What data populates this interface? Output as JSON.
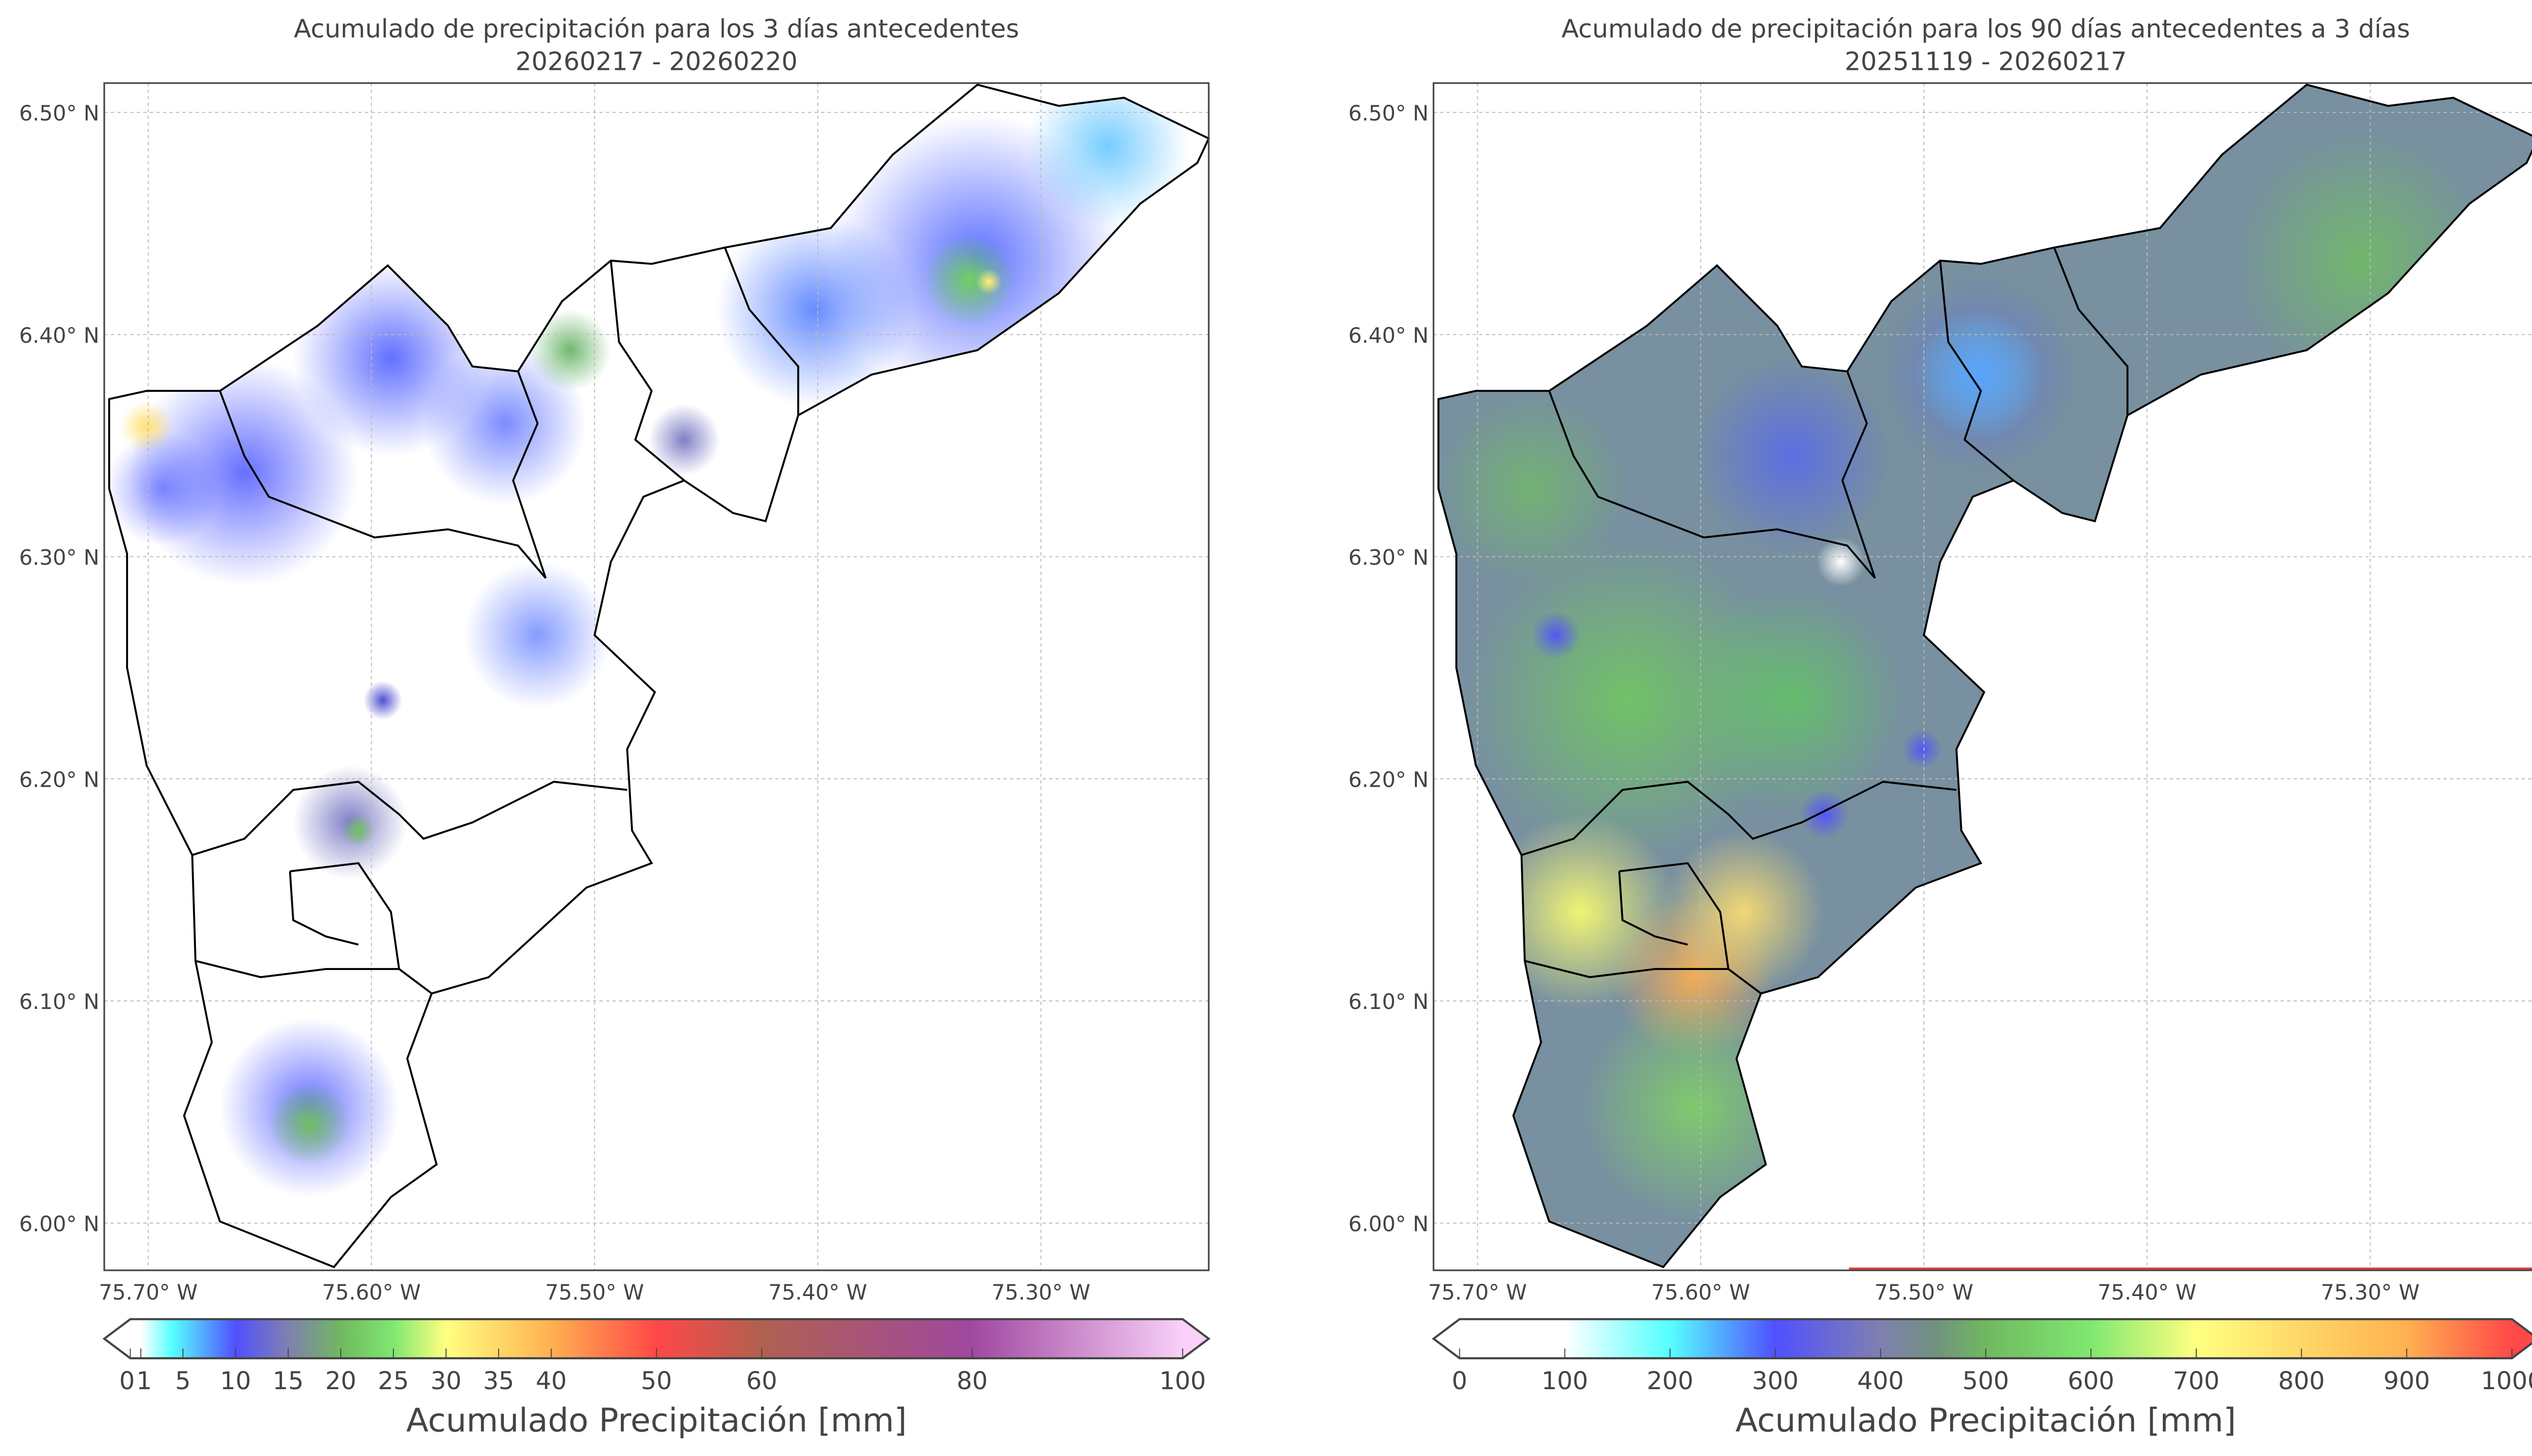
{
  "chart_data": [
    {
      "type": "heatmap",
      "title": "Acumulado de precipitación para los 3 días antecedentes",
      "subtitle": "20260217 - 20260220",
      "x_ticks": [
        "75.70° W",
        "75.60° W",
        "75.50° W",
        "75.40° W",
        "75.30° W"
      ],
      "x_tick_values": [
        -75.7,
        -75.6,
        -75.5,
        -75.4,
        -75.3
      ],
      "y_ticks": [
        "6.50° N",
        "6.40° N",
        "6.30° N",
        "6.20° N",
        "6.10° N",
        "6.00° N"
      ],
      "y_tick_values": [
        6.5,
        6.4,
        6.3,
        6.2,
        6.1,
        6.0
      ],
      "grid": true,
      "colorbar": {
        "label": "Acumulado Precipitación [mm]",
        "range": [
          0,
          100
        ],
        "ticks": [
          "0",
          "1",
          "5",
          "10",
          "15",
          "20",
          "25",
          "30",
          "35",
          "40",
          "50",
          "60",
          "80",
          "100"
        ],
        "tick_values": [
          0,
          1,
          5,
          10,
          15,
          20,
          25,
          30,
          35,
          40,
          50,
          60,
          80,
          100
        ],
        "extend": "both",
        "colors": [
          [
            "0",
            "#ffffff"
          ],
          [
            "1",
            "#ffffff"
          ],
          [
            "4",
            "#55ffff"
          ],
          [
            "10",
            "#5050ff"
          ],
          [
            "15",
            "#8080b0"
          ],
          [
            "20",
            "#70b860"
          ],
          [
            "25",
            "#80e870"
          ],
          [
            "30",
            "#ffff80"
          ],
          [
            "40",
            "#ffb050"
          ],
          [
            "50",
            "#ff4848"
          ],
          [
            "60",
            "#b06050"
          ],
          [
            "80",
            "#a048a0"
          ],
          [
            "100",
            "#f8d0f8"
          ]
        ]
      }
    },
    {
      "type": "heatmap",
      "title": "Acumulado de precipitación para los 90 días antecedentes a 3 días",
      "subtitle": "20251119 - 20260217",
      "x_ticks": [
        "75.70° W",
        "75.60° W",
        "75.50° W",
        "75.40° W",
        "75.30° W"
      ],
      "x_tick_values": [
        -75.7,
        -75.6,
        -75.5,
        -75.4,
        -75.3
      ],
      "y_ticks": [
        "6.50° N",
        "6.40° N",
        "6.30° N",
        "6.20° N",
        "6.10° N",
        "6.00° N"
      ],
      "y_tick_values": [
        6.5,
        6.4,
        6.3,
        6.2,
        6.1,
        6.0
      ],
      "grid": true,
      "colorbar": {
        "label": "Acumulado Precipitación [mm]",
        "range": [
          0,
          1000
        ],
        "ticks": [
          "0",
          "100",
          "200",
          "300",
          "400",
          "500",
          "600",
          "700",
          "800",
          "900",
          "1000"
        ],
        "tick_values": [
          0,
          100,
          200,
          300,
          400,
          500,
          600,
          700,
          800,
          900,
          1000
        ],
        "extend": "both",
        "colors": [
          [
            "0",
            "#ffffff"
          ],
          [
            "100",
            "#ffffff"
          ],
          [
            "200",
            "#55ffff"
          ],
          [
            "300",
            "#5050ff"
          ],
          [
            "400",
            "#8080b0"
          ],
          [
            "450",
            "#709080"
          ],
          [
            "500",
            "#70b860"
          ],
          [
            "600",
            "#80e870"
          ],
          [
            "700",
            "#ffff80"
          ],
          [
            "900",
            "#ffb050"
          ],
          [
            "1000",
            "#ff4848"
          ]
        ]
      }
    }
  ]
}
